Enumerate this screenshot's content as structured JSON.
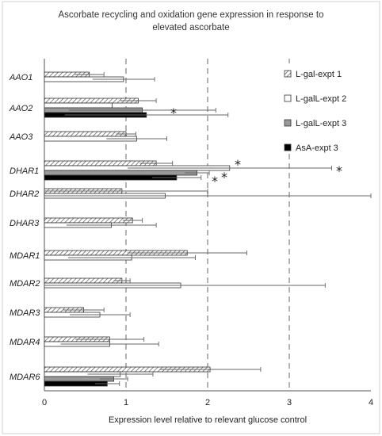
{
  "chart_data": {
    "type": "bar",
    "orientation": "horizontal",
    "title_line1": "Ascorbate recycling and oxidation gene expression in response to",
    "title_line2": "elevated ascorbate",
    "xlabel": "Expression level relative to relevant glucose control",
    "xlim": [
      0,
      4
    ],
    "xticks": [
      "0",
      "1",
      "2",
      "3",
      "4"
    ],
    "reference_lines": [
      1,
      2,
      3
    ],
    "legend_position": "right",
    "categories": [
      "AAO1",
      "AAO2",
      "AAO3",
      "DHAR1",
      "DHAR2",
      "DHAR3",
      "MDAR1",
      "MDAR2",
      "MDAR3",
      "MDAR4",
      "MDAR6"
    ],
    "series": [
      {
        "name": "L-gal-expt 1",
        "pattern": "hatch",
        "color": "#ffffff",
        "values": [
          0.55,
          1.15,
          1.0,
          1.37,
          0.95,
          1.08,
          1.75,
          0.95,
          0.48,
          0.8,
          2.03
        ],
        "errors": [
          0.18,
          0.22,
          0.12,
          0.2,
          1.05,
          0.12,
          0.73,
          0.1,
          0.25,
          0.42,
          0.62
        ]
      },
      {
        "name": "L-galL-expt 2",
        "pattern": "none",
        "color": "#ffffff",
        "values": [
          0.97,
          0.83,
          1.13,
          2.27,
          1.48,
          0.82,
          1.07,
          1.67,
          0.68,
          0.8,
          0.93
        ],
        "errors": [
          0.38,
          0.0,
          0.37,
          1.25,
          2.95,
          0.55,
          0.78,
          1.77,
          0.37,
          0.6,
          0.4
        ]
      },
      {
        "name": "L-galL-expt 3",
        "pattern": "solid",
        "color": "#9a9a9a",
        "values": [
          null,
          1.2,
          null,
          1.87,
          null,
          null,
          null,
          null,
          null,
          null,
          0.85
        ],
        "errors": [
          null,
          0.9,
          null,
          0.15,
          null,
          null,
          null,
          null,
          null,
          null,
          0.17
        ]
      },
      {
        "name": "AsA-expt 3",
        "pattern": "solid",
        "color": "#000000",
        "values": [
          null,
          1.25,
          null,
          1.62,
          null,
          null,
          null,
          null,
          null,
          null,
          0.77
        ],
        "errors": [
          null,
          1.0,
          null,
          0.3,
          null,
          null,
          null,
          null,
          null,
          null,
          0.15
        ]
      }
    ],
    "significance_marks": [
      {
        "gene": "AAO2",
        "series": "L-galL-expt 2",
        "label": "*"
      },
      {
        "gene": "DHAR1",
        "series": "L-gal-expt 1",
        "label": "*"
      },
      {
        "gene": "DHAR1",
        "series": "L-galL-expt 2",
        "label": "*"
      },
      {
        "gene": "DHAR1",
        "series": "L-galL-expt 3",
        "label": "*"
      },
      {
        "gene": "DHAR1",
        "series": "AsA-expt 3",
        "label": "*"
      }
    ]
  }
}
